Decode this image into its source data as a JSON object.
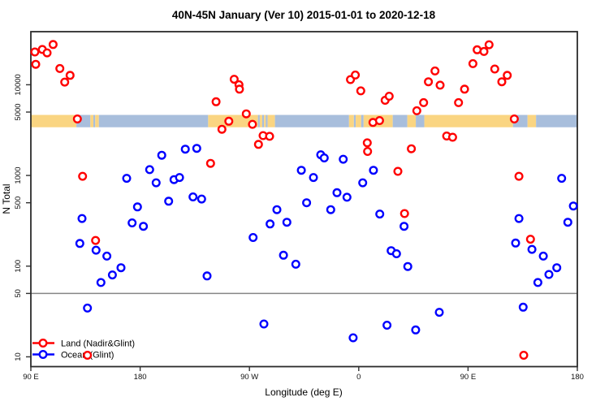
{
  "title": "40N-45N January (Ver 10)   2015-01-01 to 2020-12-18",
  "chart_data": {
    "type": "scatter",
    "title": "40N-45N January (Ver 10)   2015-01-01 to 2020-12-18",
    "xlabel": "Longitude (deg E)",
    "ylabel": "N Total",
    "x_axis": {
      "lim": [
        90,
        540
      ],
      "ticks": [
        {
          "pos": 90,
          "label": "90 E"
        },
        {
          "pos": 180,
          "label": "180"
        },
        {
          "pos": 270,
          "label": "90 W"
        },
        {
          "pos": 360,
          "label": "0"
        },
        {
          "pos": 450,
          "label": "90 E"
        },
        {
          "pos": 540,
          "label": "180"
        }
      ]
    },
    "y_axis": {
      "scale": "log",
      "lim": [
        7.8,
        38500
      ],
      "ticks": [
        {
          "v": 10,
          "label": "10"
        },
        {
          "v": 50,
          "label": "50"
        },
        {
          "v": 100,
          "label": "100"
        },
        {
          "v": 500,
          "label": "500"
        },
        {
          "v": 1000,
          "label": "1000"
        },
        {
          "v": 5000,
          "label": "5000"
        },
        {
          "v": 10000,
          "label": "10000"
        }
      ]
    },
    "reference_line": {
      "y_value": 50,
      "color": "#858585"
    },
    "map_band": {
      "description": "40N-45N latitude strip land/ocean map drawn as horizontal band",
      "value_range": [
        3400,
        4650
      ],
      "land_color": "#FAD582",
      "ocean_color": "#A8BEDC",
      "segments": [
        {
          "type": "land",
          "from": 90,
          "to": 127.5
        },
        {
          "type": "ocean",
          "from": 127.5,
          "to": 139
        },
        {
          "type": "land",
          "from": 139,
          "to": 141.5
        },
        {
          "type": "ocean",
          "from": 141.5,
          "to": 143
        },
        {
          "type": "land",
          "from": 143,
          "to": 146
        },
        {
          "type": "ocean",
          "from": 146,
          "to": 236
        },
        {
          "type": "land",
          "from": 236,
          "to": 277
        },
        {
          "type": "ocean",
          "from": 277,
          "to": 278.5
        },
        {
          "type": "land",
          "from": 278.5,
          "to": 280.5
        },
        {
          "type": "ocean",
          "from": 280.5,
          "to": 282
        },
        {
          "type": "land",
          "from": 282,
          "to": 283.5
        },
        {
          "type": "ocean",
          "from": 283.5,
          "to": 285
        },
        {
          "type": "land",
          "from": 285,
          "to": 291
        },
        {
          "type": "ocean",
          "from": 291,
          "to": 352
        },
        {
          "type": "land",
          "from": 352,
          "to": 356
        },
        {
          "type": "ocean",
          "from": 356,
          "to": 357.5
        },
        {
          "type": "land",
          "from": 357.5,
          "to": 362
        },
        {
          "type": "ocean",
          "from": 362,
          "to": 364
        },
        {
          "type": "land",
          "from": 364,
          "to": 388
        },
        {
          "type": "ocean",
          "from": 388,
          "to": 400
        },
        {
          "type": "land",
          "from": 400,
          "to": 407
        },
        {
          "type": "ocean",
          "from": 407,
          "to": 414
        },
        {
          "type": "land",
          "from": 414,
          "to": 487
        },
        {
          "type": "ocean",
          "from": 487,
          "to": 499
        },
        {
          "type": "land",
          "from": 499,
          "to": 506
        },
        {
          "type": "ocean",
          "from": 506,
          "to": 540
        }
      ]
    },
    "series": [
      {
        "name": "Land (Nadir&Glint)",
        "color": "#FF0000",
        "points": [
          [
            93.3,
            23000
          ],
          [
            99.4,
            24500
          ],
          [
            103.4,
            22500
          ],
          [
            108.3,
            27800
          ],
          [
            94.0,
            16800
          ],
          [
            113.9,
            15100
          ],
          [
            117.9,
            10700
          ],
          [
            122.3,
            12700
          ],
          [
            128.3,
            4200
          ],
          [
            132.6,
            980
          ],
          [
            143.3,
            192
          ],
          [
            238.0,
            1360
          ],
          [
            257.4,
            11500
          ],
          [
            261.4,
            10000
          ],
          [
            261.8,
            8950
          ],
          [
            242.5,
            6500
          ],
          [
            267.4,
            4780
          ],
          [
            253.0,
            3960
          ],
          [
            272.5,
            3660
          ],
          [
            247.3,
            3230
          ],
          [
            281.2,
            2750
          ],
          [
            286.6,
            2700
          ],
          [
            277.4,
            2200
          ],
          [
            353.2,
            11400
          ],
          [
            357.2,
            12800
          ],
          [
            361.7,
            8570
          ],
          [
            381.7,
            6750
          ],
          [
            385.1,
            7470
          ],
          [
            371.7,
            3840
          ],
          [
            377.1,
            4030
          ],
          [
            467.3,
            27600
          ],
          [
            457.5,
            24300
          ],
          [
            463.1,
            23300
          ],
          [
            454.0,
            17100
          ],
          [
            472.0,
            14900
          ],
          [
            422.8,
            14200
          ],
          [
            482.3,
            12700
          ],
          [
            417.4,
            10800
          ],
          [
            477.8,
            10800
          ],
          [
            427.0,
            9900
          ],
          [
            447.1,
            8950
          ],
          [
            442.2,
            6350
          ],
          [
            413.4,
            6350
          ],
          [
            407.8,
            5170
          ],
          [
            488.1,
            4200
          ],
          [
            432.4,
            2720
          ],
          [
            437.3,
            2640
          ],
          [
            403.3,
            1970
          ],
          [
            367.0,
            2290
          ],
          [
            367.3,
            1840
          ],
          [
            392.2,
            1110
          ],
          [
            491.9,
            980
          ],
          [
            397.7,
            380
          ],
          [
            501.4,
            198
          ],
          [
            136.6,
            10.4
          ],
          [
            495.9,
            10.4
          ]
        ]
      },
      {
        "name": "Ocean (Glint)",
        "color": "#0000FF",
        "points": [
          [
            217.2,
            1950
          ],
          [
            226.6,
            1990
          ],
          [
            197.8,
            1670
          ],
          [
            187.8,
            1160
          ],
          [
            168.9,
            930
          ],
          [
            193.2,
            830
          ],
          [
            207.9,
            900
          ],
          [
            212.4,
            950
          ],
          [
            223.5,
            580
          ],
          [
            230.6,
            550
          ],
          [
            203.5,
            520
          ],
          [
            177.8,
            450
          ],
          [
            132.1,
            335
          ],
          [
            173.4,
            300
          ],
          [
            182.7,
            275
          ],
          [
            130.3,
            178
          ],
          [
            143.7,
            150
          ],
          [
            152.6,
            129
          ],
          [
            164.2,
            96
          ],
          [
            157.1,
            80
          ],
          [
            147.7,
            66
          ],
          [
            235.1,
            78
          ],
          [
            136.6,
            34.5
          ],
          [
            328.7,
            1690
          ],
          [
            331.6,
            1560
          ],
          [
            347.2,
            1510
          ],
          [
            312.7,
            1140
          ],
          [
            322.7,
            950
          ],
          [
            372.1,
            1140
          ],
          [
            363.3,
            830
          ],
          [
            342.1,
            645
          ],
          [
            350.3,
            575
          ],
          [
            317.1,
            500
          ],
          [
            336.9,
            420
          ],
          [
            292.6,
            420
          ],
          [
            287.0,
            292
          ],
          [
            300.8,
            305
          ],
          [
            273.0,
            207
          ],
          [
            377.3,
            375
          ],
          [
            397.3,
            275
          ],
          [
            298.0,
            132
          ],
          [
            308.2,
            105
          ],
          [
            386.7,
            148
          ],
          [
            391.1,
            137
          ],
          [
            400.4,
            99
          ],
          [
            281.9,
            23
          ],
          [
            355.4,
            16.2
          ],
          [
            383.3,
            22.3
          ],
          [
            406.9,
            19.8
          ],
          [
            426.3,
            31
          ],
          [
            495.4,
            35.3
          ],
          [
            527.1,
            930
          ],
          [
            536.7,
            460
          ],
          [
            532.2,
            305
          ],
          [
            491.9,
            335
          ],
          [
            489.2,
            180
          ],
          [
            502.6,
            153
          ],
          [
            512.0,
            129
          ],
          [
            523.1,
            96
          ],
          [
            516.6,
            81
          ],
          [
            507.5,
            66
          ]
        ]
      }
    ],
    "legend": {
      "position": "bottom-left",
      "entries": [
        "Land (Nadir&Glint)",
        "Ocean (Glint)"
      ]
    },
    "marker": {
      "shape": "open-circle",
      "radius": 4.3,
      "stroke_width": 2.4
    }
  }
}
